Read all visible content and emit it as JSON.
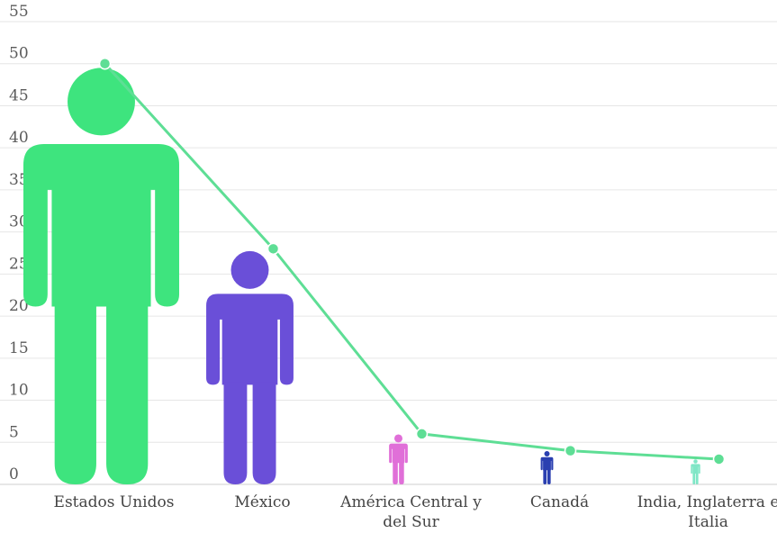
{
  "chart_data": {
    "type": "pictograph",
    "categories": [
      [
        "Estados Unidos"
      ],
      [
        "México"
      ],
      [
        "América Central y",
        "del Sur"
      ],
      [
        "Canadá"
      ],
      [
        "India, Inglaterra e",
        "Italia"
      ]
    ],
    "values": [
      50,
      28,
      6,
      4,
      3
    ],
    "colors": [
      "#3ee47e",
      "#6a4fd8",
      "#e06fd8",
      "#2a3fb0",
      "#7fe6c6"
    ],
    "line_color": "#5ede95",
    "ylim": [
      0,
      55
    ],
    "yticks": [
      0,
      5,
      10,
      15,
      20,
      25,
      30,
      35,
      40,
      45,
      50,
      55
    ],
    "grid": true
  }
}
